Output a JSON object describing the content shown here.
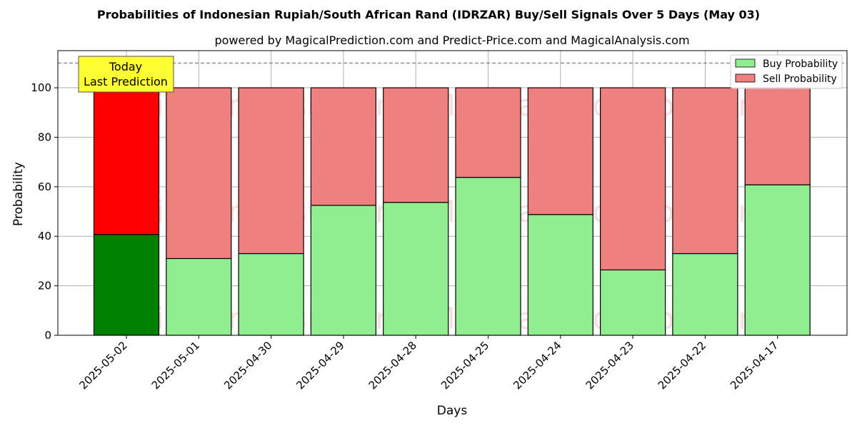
{
  "chart_data": {
    "type": "bar",
    "title": "Probabilities of Indonesian Rupiah/South African Rand (IDRZAR) Buy/Sell Signals Over 5 Days (May 03)",
    "subtitle": "powered by MagicalPrediction.com and Predict-Price.com and MagicalAnalysis.com",
    "xlabel": "Days",
    "ylabel": "Probability",
    "ylim": [
      0,
      115
    ],
    "yticks": [
      0,
      20,
      40,
      60,
      80,
      100
    ],
    "grid": true,
    "legend_position": "top-right",
    "stacked": true,
    "categories": [
      "2025-05-02",
      "2025-05-01",
      "2025-04-30",
      "2025-04-29",
      "2025-04-28",
      "2025-04-25",
      "2025-04-24",
      "2025-04-23",
      "2025-04-22",
      "2025-04-17"
    ],
    "series": [
      {
        "name": "Buy Probability",
        "values": [
          40.7,
          31.0,
          33.0,
          52.5,
          53.7,
          63.8,
          48.8,
          26.4,
          33.0,
          60.8
        ]
      },
      {
        "name": "Sell Probability",
        "values": [
          59.3,
          69.0,
          67.0,
          47.5,
          46.3,
          36.2,
          51.2,
          73.6,
          67.0,
          39.2
        ]
      }
    ],
    "reference_line": 110,
    "annotation": {
      "lines": [
        "Today",
        "Last Prediction"
      ]
    },
    "watermarks": [
      "MagicalAnalysis.com",
      "MagicalPrediction.com"
    ],
    "colors": {
      "buy": "#90ee90",
      "sell": "#f08080",
      "buy_today": "#008000",
      "sell_today": "#ff0000",
      "annotation_bg": "#ffff33",
      "grid": "#b0b0b0",
      "refline": "#808080"
    }
  }
}
